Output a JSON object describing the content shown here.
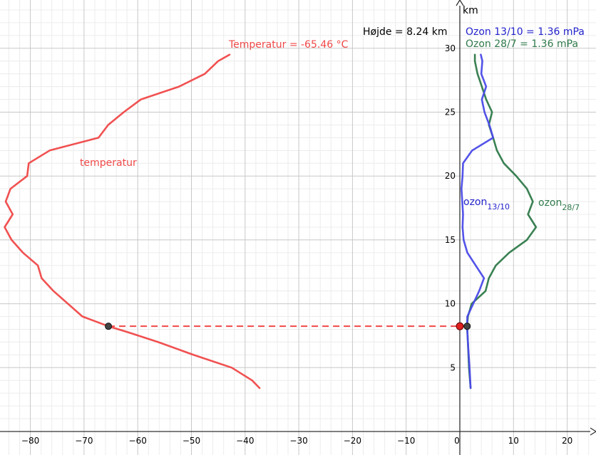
{
  "chart_data": {
    "type": "line",
    "xlim": [
      -85,
      25
    ],
    "ylim": [
      0,
      33.5
    ],
    "grid": true,
    "x_ticks": [
      "−80",
      "−70",
      "−60",
      "−50",
      "−40",
      "−30",
      "−20",
      "−10",
      "0",
      "10",
      "20"
    ],
    "y_ticks": [
      "5",
      "10",
      "15",
      "20",
      "25",
      "30"
    ],
    "y_axis_label": "km",
    "annotations": {
      "height": "Højde = 8.24 km",
      "temperature": "Temperatur = -65.46 °C",
      "ozone_1310": "Ozon 13/10 = 1.36 mPa",
      "ozone_287": "Ozon 28/7 = 1.36 mPa"
    },
    "curve_labels": {
      "temperature": "temperatur",
      "ozone_1310_main": "ozon",
      "ozone_1310_sub": "13/10",
      "ozone_287_main": "ozon",
      "ozone_287_sub": "28/7"
    },
    "marker": {
      "height_km": 8.24,
      "temperature_c": -65.46,
      "ozone_1310_mpa": 1.36,
      "ozone_287_mpa": 1.36
    },
    "series": [
      {
        "key": "temperature",
        "color": "#f04848",
        "points": [
          [
            -37.3,
            3.4
          ],
          [
            -38.7,
            4.0
          ],
          [
            -42.5,
            5.0
          ],
          [
            -49.6,
            6.0
          ],
          [
            -56.2,
            7.0
          ],
          [
            -62.0,
            7.8
          ],
          [
            -65.46,
            8.24
          ],
          [
            -70.3,
            9.0
          ],
          [
            -75.7,
            11.0
          ],
          [
            -77.9,
            12.0
          ],
          [
            -78.6,
            13.0
          ],
          [
            -81.4,
            14.0
          ],
          [
            -83.5,
            15.0
          ],
          [
            -84.8,
            16.0
          ],
          [
            -83.3,
            17.0
          ],
          [
            -84.6,
            18.0
          ],
          [
            -83.7,
            19.0
          ],
          [
            -80.6,
            20.0
          ],
          [
            -80.3,
            21.0
          ],
          [
            -76.4,
            22.0
          ],
          [
            -67.3,
            23.0
          ],
          [
            -65.5,
            24.0
          ],
          [
            -62.6,
            25.0
          ],
          [
            -59.4,
            26.0
          ],
          [
            -52.3,
            27.0
          ],
          [
            -47.5,
            28.0
          ],
          [
            -45.0,
            29.0
          ],
          [
            -42.9,
            29.5
          ]
        ]
      },
      {
        "key": "ozone_1310",
        "color": "#4a4ae8",
        "points": [
          [
            2.0,
            3.4
          ],
          [
            1.8,
            5.0
          ],
          [
            1.5,
            7.0
          ],
          [
            1.36,
            8.24
          ],
          [
            1.4,
            9.0
          ],
          [
            2.5,
            10.0
          ],
          [
            3.6,
            11.0
          ],
          [
            4.5,
            12.0
          ],
          [
            1.4,
            14.0
          ],
          [
            0.7,
            15.0
          ],
          [
            0.5,
            16.0
          ],
          [
            0.6,
            17.0
          ],
          [
            0.3,
            19.0
          ],
          [
            0.5,
            20.0
          ],
          [
            0.6,
            21.0
          ],
          [
            2.3,
            22.0
          ],
          [
            6.2,
            23.0
          ],
          [
            5.5,
            24.0
          ],
          [
            4.6,
            25.0
          ],
          [
            4.1,
            26.0
          ],
          [
            4.9,
            27.0
          ],
          [
            4.0,
            28.0
          ],
          [
            4.2,
            29.0
          ],
          [
            3.9,
            29.5
          ]
        ]
      },
      {
        "key": "ozone_287",
        "color": "#2f7a4a",
        "points": [
          [
            2.0,
            3.4
          ],
          [
            1.7,
            5.0
          ],
          [
            1.5,
            7.0
          ],
          [
            1.36,
            8.24
          ],
          [
            1.5,
            9.0
          ],
          [
            2.2,
            10.0
          ],
          [
            4.8,
            11.0
          ],
          [
            5.4,
            12.0
          ],
          [
            6.7,
            13.0
          ],
          [
            9.2,
            14.0
          ],
          [
            12.5,
            15.0
          ],
          [
            14.2,
            16.0
          ],
          [
            12.7,
            17.0
          ],
          [
            13.6,
            18.0
          ],
          [
            12.5,
            19.0
          ],
          [
            10.5,
            20.0
          ],
          [
            8.2,
            21.0
          ],
          [
            6.9,
            22.0
          ],
          [
            6.2,
            23.0
          ],
          [
            5.4,
            24.0
          ],
          [
            6.0,
            25.0
          ],
          [
            4.9,
            26.0
          ],
          [
            4.1,
            27.0
          ],
          [
            3.3,
            28.0
          ],
          [
            2.8,
            29.0
          ],
          [
            2.8,
            29.5
          ]
        ]
      }
    ]
  }
}
